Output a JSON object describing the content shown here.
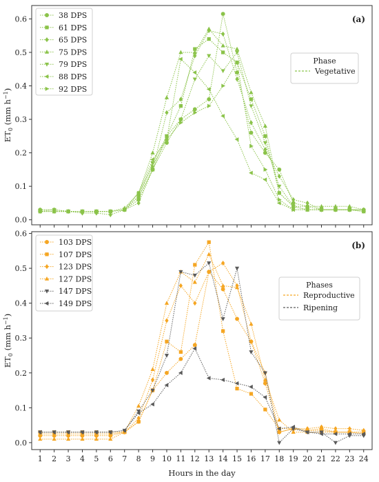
{
  "chart_data": [
    {
      "type": "line",
      "panel_label": "(a)",
      "ylabel": "ET0 (mm h⁻¹)",
      "ylabel_main": "ET",
      "ylabel_sub": "0",
      "ylabel_units": " (mm h",
      "ylabel_sup": "−1",
      "ylabel_close": ")",
      "ylim": [
        -0.015,
        0.64
      ],
      "yticks": [
        "0.0",
        "0.1",
        "0.2",
        "0.3",
        "0.4",
        "0.5",
        "0.6"
      ],
      "x": [
        1,
        2,
        3,
        4,
        5,
        6,
        7,
        8,
        9,
        10,
        11,
        12,
        13,
        14,
        15,
        16,
        17,
        18,
        19,
        20,
        21,
        22,
        23,
        24
      ],
      "grid": false,
      "legend_position": "top-left",
      "phase_legend": {
        "title": "Phase",
        "entries": [
          {
            "label": "Vegetative",
            "color": "#8BC34A"
          }
        ]
      },
      "series": [
        {
          "name": "38 DPS",
          "marker": "circle",
          "color": "#8BC34A",
          "values": [
            0.03,
            0.03,
            0.025,
            0.025,
            0.025,
            0.025,
            0.03,
            0.06,
            0.15,
            0.23,
            0.3,
            0.33,
            0.36,
            0.615,
            0.44,
            0.26,
            0.2,
            0.15,
            0.05,
            0.04,
            0.03,
            0.03,
            0.03,
            0.03
          ]
        },
        {
          "name": "61 DPS",
          "marker": "square",
          "color": "#8BC34A",
          "values": [
            0.025,
            0.025,
            0.025,
            0.025,
            0.025,
            0.025,
            0.03,
            0.07,
            0.15,
            0.25,
            0.34,
            0.51,
            0.54,
            0.5,
            0.47,
            0.36,
            0.25,
            0.08,
            0.04,
            0.03,
            0.03,
            0.03,
            0.03,
            0.025
          ]
        },
        {
          "name": "65 DPS",
          "marker": "diamond",
          "color": "#8BC34A",
          "values": [
            0.025,
            0.025,
            0.025,
            0.02,
            0.02,
            0.015,
            0.03,
            0.05,
            0.15,
            0.32,
            0.36,
            0.49,
            0.565,
            0.555,
            0.42,
            0.29,
            0.21,
            0.13,
            0.06,
            0.05,
            0.03,
            0.03,
            0.03,
            0.03
          ]
        },
        {
          "name": "75 DPS",
          "marker": "triangle-up",
          "color": "#8BC34A",
          "values": [
            0.03,
            0.03,
            0.025,
            0.025,
            0.025,
            0.025,
            0.035,
            0.08,
            0.2,
            0.365,
            0.5,
            0.5,
            0.57,
            0.52,
            0.51,
            0.38,
            0.28,
            0.08,
            0.04,
            0.04,
            0.04,
            0.04,
            0.04,
            0.03
          ]
        },
        {
          "name": "79 DPS",
          "marker": "triangle-down",
          "color": "#8BC34A",
          "values": [
            0.025,
            0.03,
            0.025,
            0.025,
            0.025,
            0.025,
            0.03,
            0.07,
            0.17,
            0.25,
            0.3,
            0.42,
            0.49,
            0.445,
            0.5,
            0.34,
            0.23,
            0.1,
            0.04,
            0.03,
            0.03,
            0.03,
            0.03,
            0.025
          ]
        },
        {
          "name": "88 DPS",
          "marker": "triangle-left",
          "color": "#8BC34A",
          "values": [
            0.025,
            0.025,
            0.025,
            0.025,
            0.025,
            0.025,
            0.03,
            0.08,
            0.18,
            0.24,
            0.48,
            0.44,
            0.39,
            0.31,
            0.24,
            0.14,
            0.12,
            0.05,
            0.03,
            0.03,
            0.03,
            0.03,
            0.03,
            0.025
          ]
        },
        {
          "name": "92 DPS",
          "marker": "triangle-right",
          "color": "#8BC34A",
          "values": [
            0.025,
            0.025,
            0.025,
            0.025,
            0.025,
            0.025,
            0.03,
            0.08,
            0.16,
            0.24,
            0.29,
            0.32,
            0.34,
            0.4,
            0.47,
            0.22,
            0.15,
            0.06,
            0.03,
            0.03,
            0.03,
            0.03,
            0.03,
            0.025
          ]
        }
      ]
    },
    {
      "type": "line",
      "panel_label": "(b)",
      "ylabel": "ET0 (mm h⁻¹)",
      "ylabel_main": "ET",
      "ylabel_sub": "0",
      "ylabel_units": " (mm h",
      "ylabel_sup": "−1",
      "ylabel_close": ")",
      "xlabel": "Hours in the day",
      "ylim": [
        -0.02,
        0.605
      ],
      "yticks": [
        "0.0",
        "0.1",
        "0.2",
        "0.3",
        "0.4",
        "0.5",
        "0.6"
      ],
      "x": [
        1,
        2,
        3,
        4,
        5,
        6,
        7,
        8,
        9,
        10,
        11,
        12,
        13,
        14,
        15,
        16,
        17,
        18,
        19,
        20,
        21,
        22,
        23,
        24
      ],
      "xticks": [
        "1",
        "2",
        "3",
        "4",
        "5",
        "6",
        "7",
        "8",
        "9",
        "10",
        "11",
        "12",
        "13",
        "14",
        "15",
        "16",
        "17",
        "18",
        "19",
        "20",
        "21",
        "22",
        "23",
        "24"
      ],
      "grid": false,
      "legend_position": "top-left",
      "phase_legend": {
        "title": "Phases",
        "entries": [
          {
            "label": "Reproductive",
            "color": "#F5A623"
          },
          {
            "label": "Ripening",
            "color": "#5a5a5a"
          }
        ]
      },
      "series": [
        {
          "name": "103 DPS",
          "marker": "circle",
          "color": "#F5A623",
          "values": [
            0.02,
            0.02,
            0.02,
            0.02,
            0.02,
            0.02,
            0.03,
            0.06,
            0.15,
            0.2,
            0.24,
            0.28,
            0.49,
            0.44,
            0.355,
            0.29,
            0.17,
            0.03,
            0.04,
            0.035,
            0.04,
            0.03,
            0.03,
            0.025
          ]
        },
        {
          "name": "107 DPS",
          "marker": "square",
          "color": "#F5A623",
          "values": [
            0.03,
            0.03,
            0.03,
            0.03,
            0.03,
            0.03,
            0.03,
            0.06,
            0.15,
            0.29,
            0.26,
            0.51,
            0.575,
            0.32,
            0.155,
            0.14,
            0.095,
            0.04,
            0.04,
            0.035,
            0.035,
            0.03,
            0.03,
            0.03
          ]
        },
        {
          "name": "123 DPS",
          "marker": "diamond",
          "color": "#F5A623",
          "values": [
            0.025,
            0.025,
            0.025,
            0.025,
            0.025,
            0.025,
            0.03,
            0.07,
            0.18,
            0.35,
            0.45,
            0.4,
            0.49,
            0.515,
            0.45,
            0.29,
            0.2,
            0.03,
            0.04,
            0.04,
            0.045,
            0.04,
            0.04,
            0.035
          ]
        },
        {
          "name": "127 DPS",
          "marker": "triangle-up",
          "color": "#F5A623",
          "values": [
            0.01,
            0.01,
            0.01,
            0.01,
            0.01,
            0.01,
            0.03,
            0.105,
            0.21,
            0.4,
            0.49,
            0.46,
            0.54,
            0.45,
            0.445,
            0.34,
            0.18,
            0.065,
            0.03,
            0.03,
            0.03,
            0.03,
            0.03,
            0.03
          ]
        },
        {
          "name": "147 DPS",
          "marker": "triangle-down",
          "color": "#5a5a5a",
          "values": [
            0.03,
            0.03,
            0.03,
            0.03,
            0.03,
            0.03,
            0.035,
            0.09,
            0.15,
            0.25,
            0.49,
            0.48,
            0.515,
            0.355,
            0.5,
            0.26,
            0.2,
            0.0,
            0.04,
            0.03,
            0.03,
            0.0,
            0.02,
            0.02
          ]
        },
        {
          "name": "149 DPS",
          "marker": "triangle-left",
          "color": "#5a5a5a",
          "values": [
            0.03,
            0.03,
            0.03,
            0.03,
            0.03,
            0.03,
            0.035,
            0.085,
            0.11,
            0.165,
            0.2,
            0.27,
            0.185,
            0.18,
            0.17,
            0.16,
            0.13,
            0.04,
            0.045,
            0.03,
            0.025,
            0.025,
            0.025,
            0.025
          ]
        }
      ]
    }
  ]
}
